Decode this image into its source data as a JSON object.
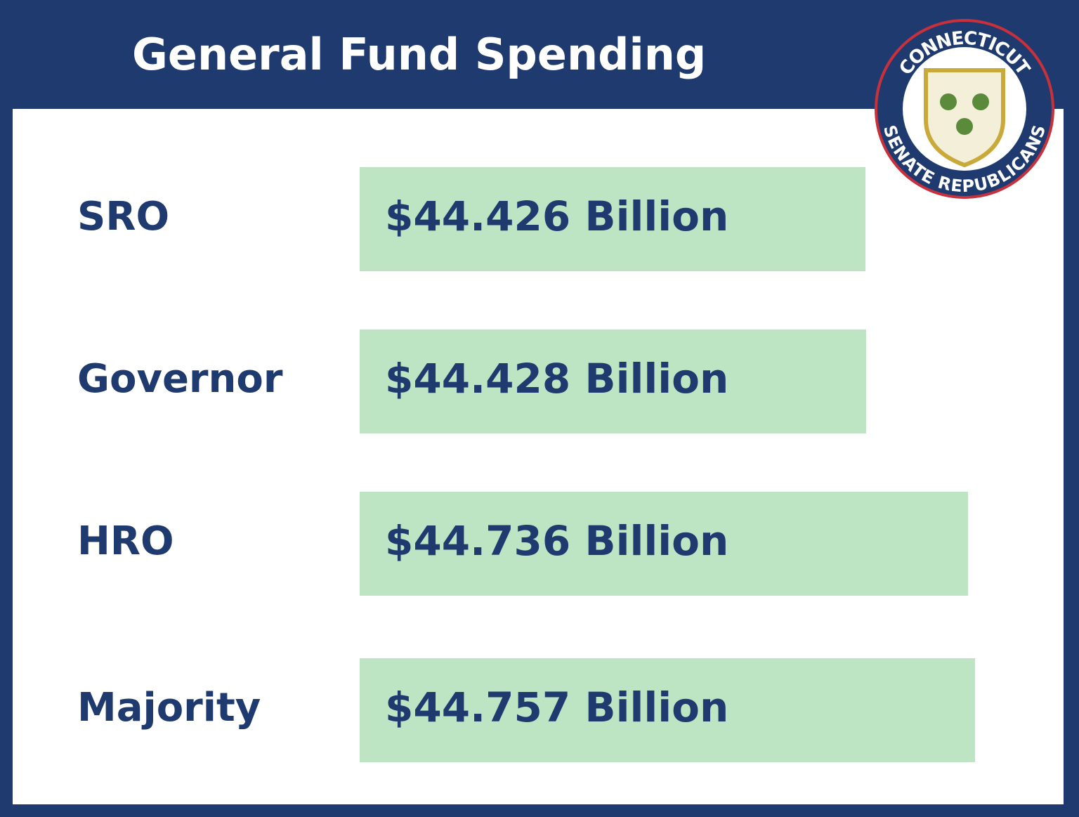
{
  "chart_data": {
    "type": "bar",
    "orientation": "horizontal",
    "title": "General Fund Spending",
    "categories": [
      "SRO",
      "Governor",
      "HRO",
      "Majority"
    ],
    "values": [
      44.426,
      44.428,
      44.736,
      44.757
    ],
    "value_labels": [
      "$44.426 Billion",
      "$44.428 Billion",
      "$44.736 Billion",
      "$44.757 Billion"
    ],
    "color": "#bde5c4"
  },
  "logo": {
    "top_text": "CONNECTICUT",
    "bottom_text": "SENATE REPUBLICANS"
  }
}
